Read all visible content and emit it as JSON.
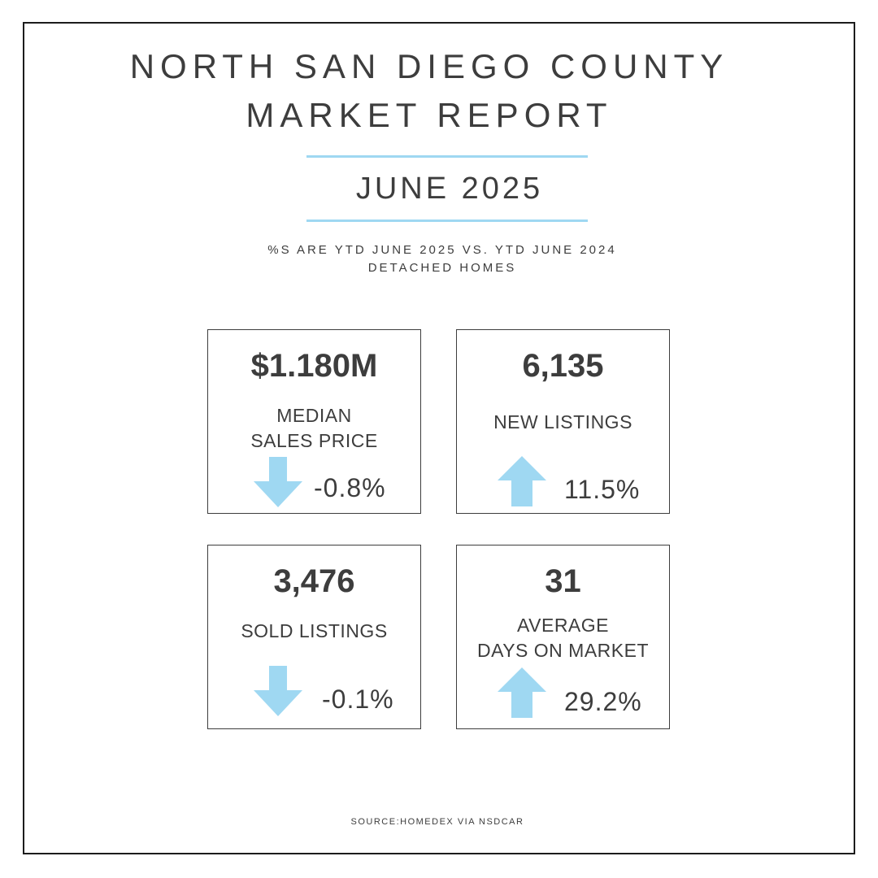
{
  "header": {
    "title_line1": "NORTH SAN DIEGO COUNTY",
    "title_line2": "MARKET REPORT",
    "month": "JUNE 2025",
    "subtitle_line1": "%S ARE YTD JUNE 2025 VS. YTD JUNE 2024",
    "subtitle_line2": "DETACHED HOMES"
  },
  "cards": [
    {
      "value": "$1.180M",
      "label_line1": "MEDIAN",
      "label_line2": "SALES PRICE",
      "change": "-0.8%",
      "direction": "down",
      "arrow_icon": "arrow-down-icon"
    },
    {
      "value": "6,135",
      "label_line1": "NEW LISTINGS",
      "label_line2": "",
      "change": "11.5%",
      "direction": "up",
      "arrow_icon": "arrow-up-icon"
    },
    {
      "value": "3,476",
      "label_line1": "SOLD LISTINGS",
      "label_line2": "",
      "change": "-0.1%",
      "direction": "down",
      "arrow_icon": "arrow-down-icon"
    },
    {
      "value": "31",
      "label_line1": "AVERAGE",
      "label_line2": "DAYS ON MARKET",
      "change": "29.2%",
      "direction": "up",
      "arrow_icon": "arrow-up-icon"
    }
  ],
  "footer": {
    "source": "SOURCE:HOMEDEX VIA NSDCAR"
  },
  "colors": {
    "accent": "#9fd8f2",
    "text": "#3d3d3d",
    "border": "#1c1c1c"
  }
}
